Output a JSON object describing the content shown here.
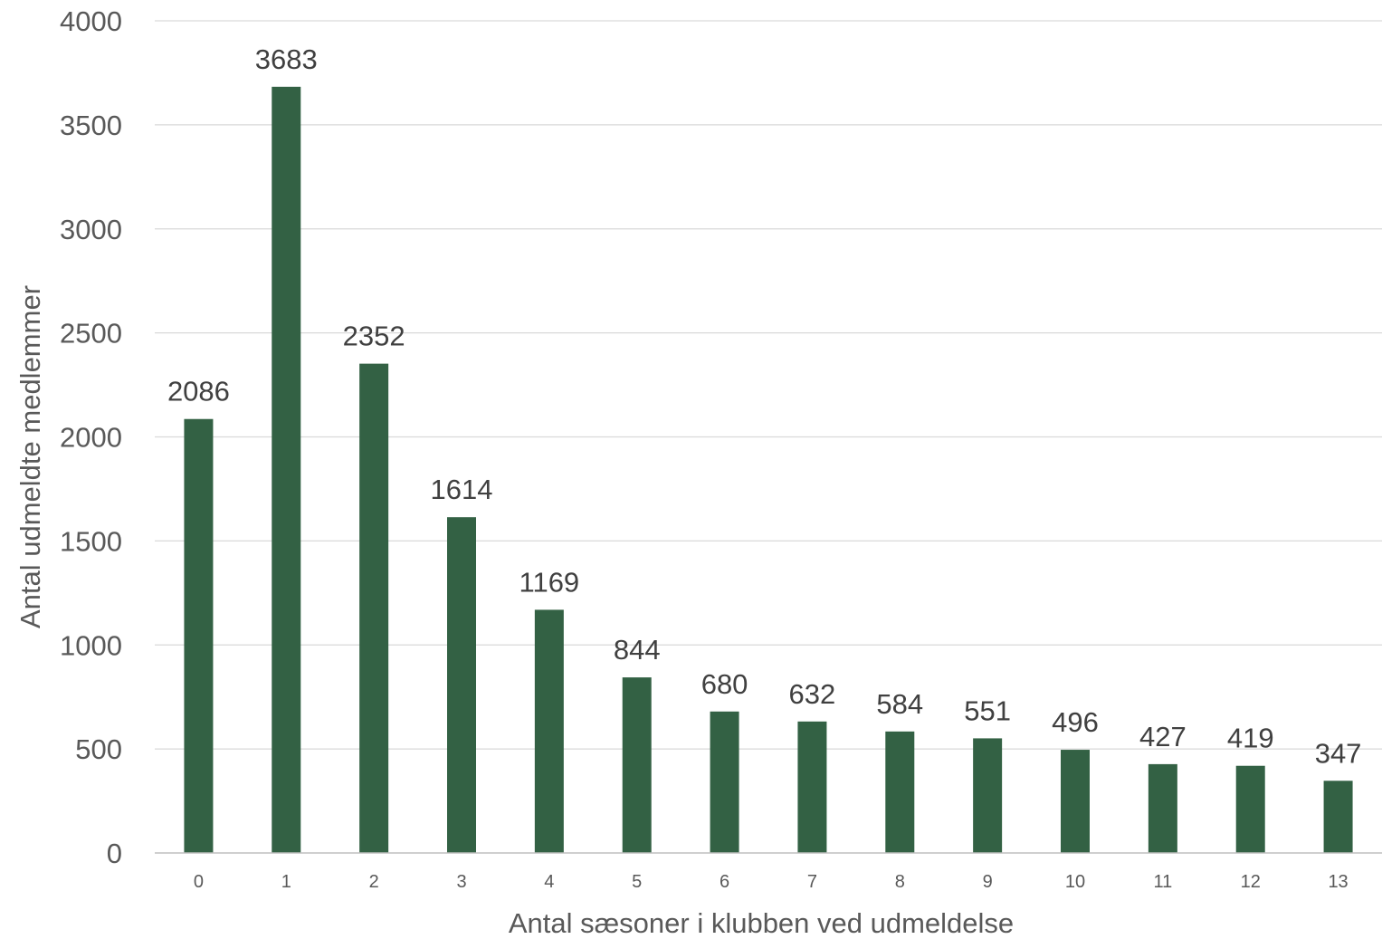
{
  "chart_data": {
    "type": "bar",
    "title": "",
    "xlabel": "Antal sæsoner i klubben ved udmeldelse",
    "ylabel": "Antal udmeldte medlemmer",
    "categories": [
      "0",
      "1",
      "2",
      "3",
      "4",
      "5",
      "6",
      "7",
      "8",
      "9",
      "10",
      "11",
      "12",
      "13"
    ],
    "values": [
      2086,
      3683,
      2352,
      1614,
      1169,
      844,
      680,
      632,
      584,
      551,
      496,
      427,
      419,
      347
    ],
    "data_labels": [
      "2086",
      "3683",
      "2352",
      "1614",
      "1169",
      "844",
      "680",
      "632",
      "584",
      "551",
      "496",
      "427",
      "419",
      "347"
    ],
    "ylim": [
      0,
      4000
    ],
    "yticks": [
      0,
      500,
      1000,
      1500,
      2000,
      2500,
      3000,
      3500,
      4000
    ],
    "ytick_labels": [
      "0",
      "500",
      "1000",
      "1500",
      "2000",
      "2500",
      "3000",
      "3500",
      "4000"
    ],
    "grid": true,
    "legend": "none",
    "colors": {
      "bar": "#336144",
      "grid": "#d9d9d9",
      "axis": "#bfbfbf",
      "tick_text": "#595959",
      "label_text": "#404040"
    }
  }
}
